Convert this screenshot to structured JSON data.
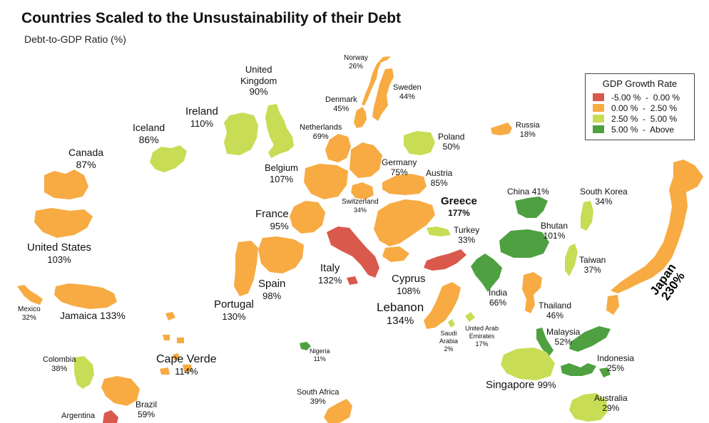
{
  "title": "Countries Scaled to the Unsustainability of their Debt",
  "subtitle": "Debt-to-GDP Ratio (%)",
  "legend": {
    "title": "GDP Growth Rate",
    "items": [
      {
        "label": "-5.00 %  -  0.00 %",
        "color": "#d9594c"
      },
      {
        "label": "0.00 %  -  2.50 %",
        "color": "#f7ab42"
      },
      {
        "label": "2.50 %  -  5.00 %",
        "color": "#c8dd55"
      },
      {
        "label": "5.00 %  -  Above",
        "color": "#4ea040"
      }
    ]
  },
  "countries": {
    "norway": {
      "name": "Norway",
      "debt": "26%"
    },
    "sweden": {
      "name": "Sweden",
      "debt": "44%"
    },
    "denmark": {
      "name": "Denmark",
      "debt": "45%"
    },
    "uk": {
      "name": "United Kingdom",
      "name1": "United",
      "name2": "Kingdom",
      "debt": "90%"
    },
    "ireland": {
      "name": "Ireland",
      "debt": "110%"
    },
    "iceland": {
      "name": "Iceland",
      "debt": "86%"
    },
    "netherlands": {
      "name": "Netherlands",
      "debt": "69%"
    },
    "poland": {
      "name": "Poland",
      "debt": "50%"
    },
    "russia": {
      "name": "Russia",
      "debt": "18%"
    },
    "canada": {
      "name": "Canada",
      "debt": "87%"
    },
    "belgium": {
      "name": "Belgium",
      "debt": "107%"
    },
    "germany": {
      "name": "Germany",
      "debt": "75%"
    },
    "austria": {
      "name": "Austria",
      "debt": "85%"
    },
    "switzerland": {
      "name": "Switzerland",
      "debt": "34%"
    },
    "greece": {
      "name": "Greece",
      "debt": "177%"
    },
    "china": {
      "name": "China",
      "debt": "41%"
    },
    "south_korea": {
      "name": "South Korea",
      "debt": "34%"
    },
    "france": {
      "name": "France",
      "debt": "95%"
    },
    "turkey": {
      "name": "Turkey",
      "debt": "33%"
    },
    "bhutan": {
      "name": "Bhutan",
      "debt": "101%"
    },
    "united_states": {
      "name": "United States",
      "debt": "103%"
    },
    "taiwan": {
      "name": "Taiwan",
      "debt": "37%"
    },
    "italy": {
      "name": "Italy",
      "debt": "132%"
    },
    "spain": {
      "name": "Spain",
      "debt": "98%"
    },
    "cyprus": {
      "name": "Cyprus",
      "debt": "108%"
    },
    "mexico": {
      "name": "Mexico",
      "debt": "32%"
    },
    "jamaica": {
      "name": "Jamaica",
      "debt": "133%"
    },
    "portugal": {
      "name": "Portugal",
      "debt": "130%"
    },
    "india": {
      "name": "India",
      "debt": "66%"
    },
    "thailand": {
      "name": "Thailand",
      "debt": "46%"
    },
    "lebanon": {
      "name": "Lebanon",
      "debt": "134%"
    },
    "japan": {
      "name": "Japan",
      "debt": "230%"
    },
    "saudi_arabia": {
      "name": "Saudi Arabia",
      "name1": "Saudi",
      "name2": "Arabia",
      "debt": "2%"
    },
    "uae": {
      "name": "United Arab Emirates",
      "name1": "United Arab",
      "name2": "Emirates",
      "debt": "17%"
    },
    "malaysia": {
      "name": "Malaysia",
      "debt": "52%"
    },
    "nigeria": {
      "name": "Nigeria",
      "debt": "11%"
    },
    "cape_verde": {
      "name": "Cape Verde",
      "debt": "114%"
    },
    "colombia": {
      "name": "Colombia",
      "debt": "38%"
    },
    "indonesia": {
      "name": "Indonesia",
      "debt": "25%"
    },
    "singapore": {
      "name": "Singapore",
      "debt": "99%"
    },
    "south_africa": {
      "name": "South Africa",
      "debt": "39%"
    },
    "brazil": {
      "name": "Brazil",
      "debt": "59%"
    },
    "australia": {
      "name": "Australia",
      "debt": "29%"
    },
    "argentina": {
      "name": "Argentina"
    }
  }
}
